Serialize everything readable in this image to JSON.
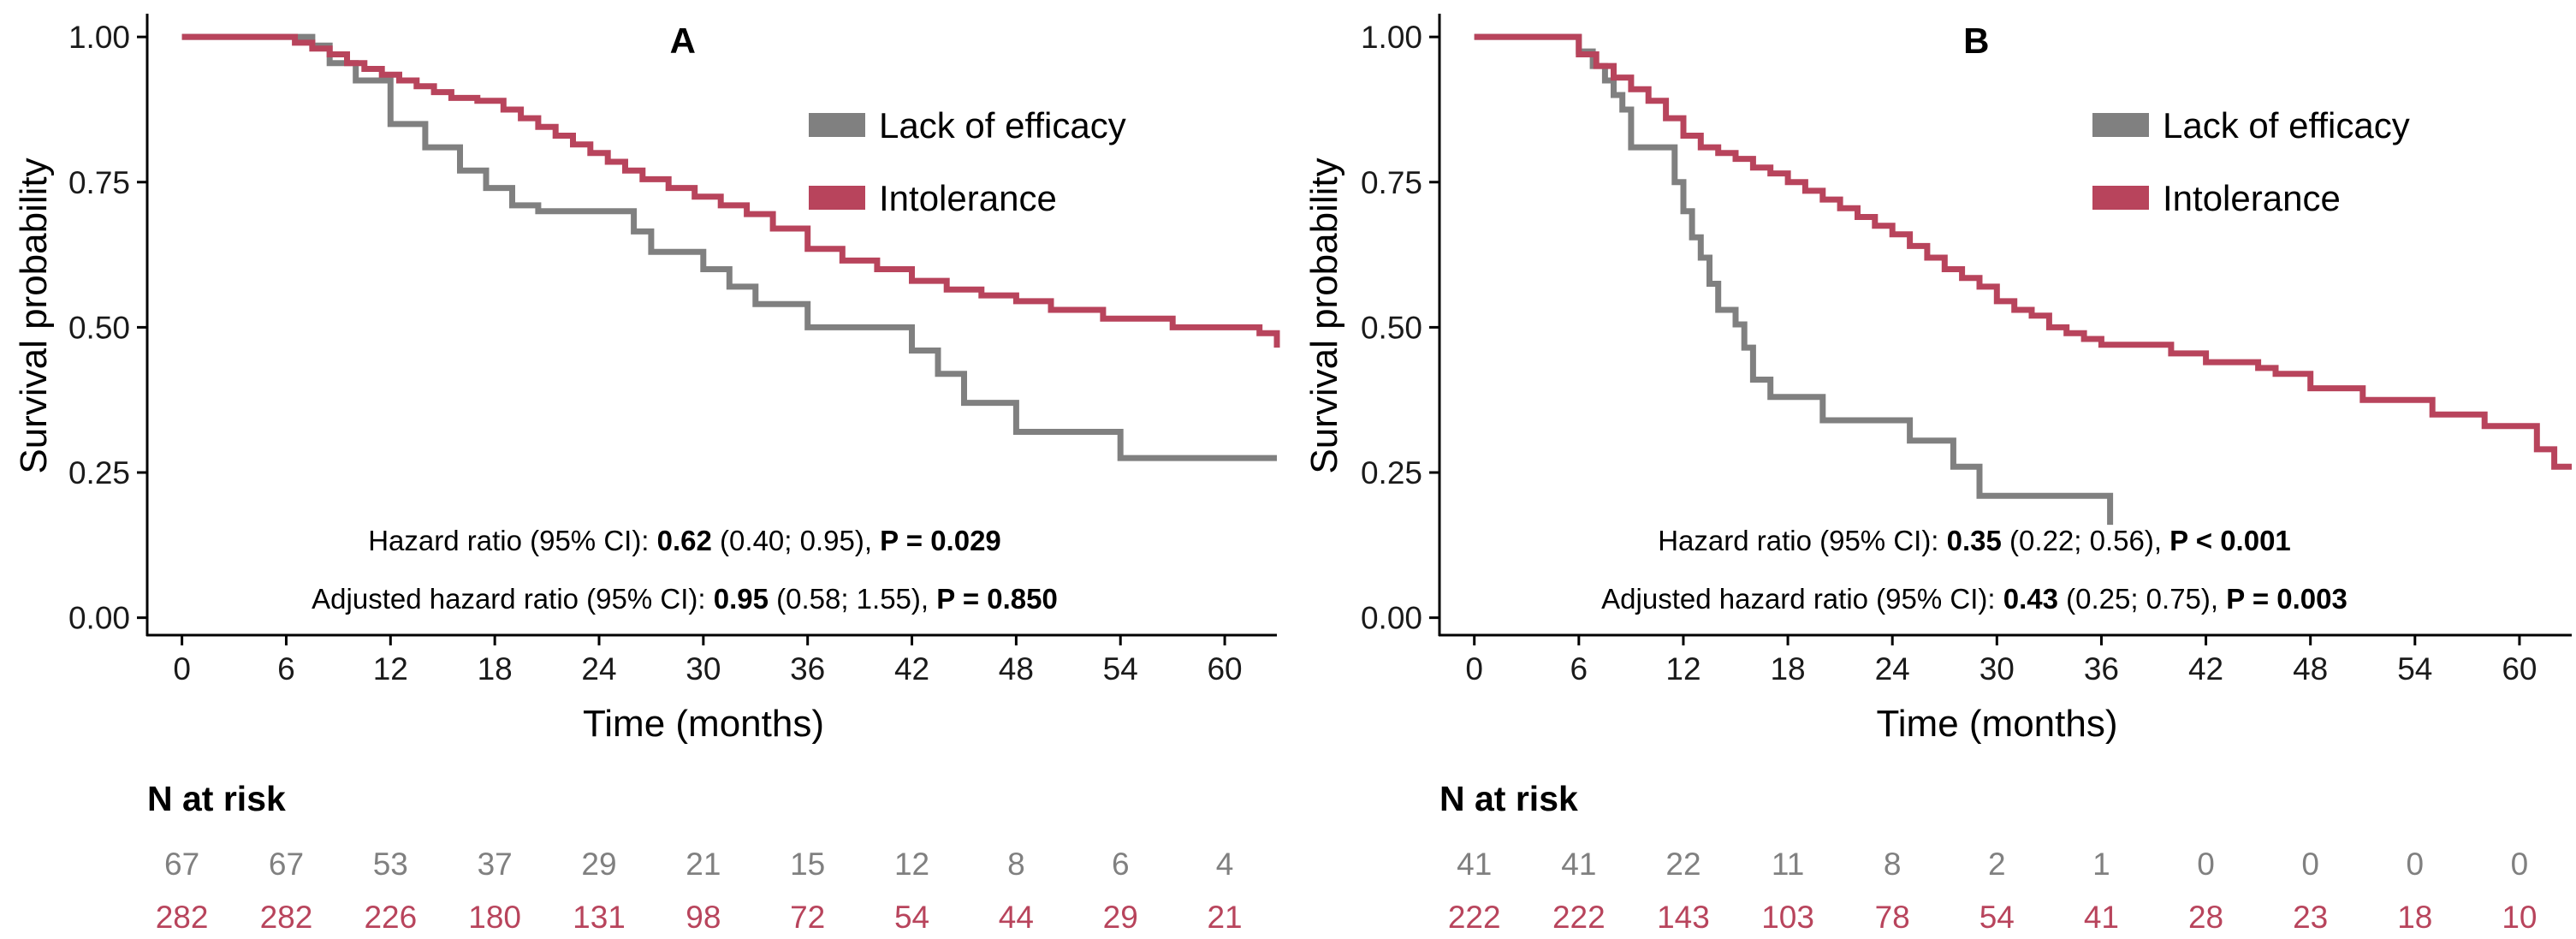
{
  "colors": {
    "lack": "#808080",
    "intol": "#B8445C",
    "axis": "#000000"
  },
  "chart_data": [
    {
      "type": "line",
      "panel": "A",
      "title": "A",
      "xlabel": "Time (months)",
      "ylabel": "Survival probability",
      "xlim": [
        -2,
        63
      ],
      "ylim": [
        -0.03,
        1.04
      ],
      "xticks": [
        0,
        6,
        12,
        18,
        24,
        30,
        36,
        42,
        48,
        54,
        60
      ],
      "yticks": [
        0.0,
        0.25,
        0.5,
        0.75,
        1.0
      ],
      "ytick_labels": [
        "0.00",
        "0.25",
        "0.50",
        "0.75",
        "1.00"
      ],
      "legend": {
        "position": "top-right",
        "entries": [
          "Lack of efficacy",
          "Intolerance"
        ]
      },
      "series": [
        {
          "name": "Lack of efficacy",
          "x": [
            0,
            7.5,
            8.5,
            10,
            12,
            14,
            16,
            17.5,
            19,
            20.5,
            22,
            24,
            26,
            27,
            28.5,
            30,
            31.5,
            33,
            36,
            40,
            42,
            43.5,
            45,
            48,
            51,
            54,
            63
          ],
          "y": [
            1.0,
            0.985,
            0.955,
            0.925,
            0.85,
            0.81,
            0.77,
            0.74,
            0.71,
            0.7,
            0.7,
            0.7,
            0.665,
            0.63,
            0.63,
            0.6,
            0.57,
            0.54,
            0.5,
            0.5,
            0.46,
            0.42,
            0.37,
            0.32,
            0.32,
            0.275,
            0.275
          ]
        },
        {
          "name": "Intolerance",
          "x": [
            0,
            6.5,
            7.5,
            8.5,
            9.5,
            10.5,
            11.5,
            12.5,
            13.5,
            14.5,
            15.5,
            17,
            18.5,
            19.5,
            20.5,
            21.5,
            22.5,
            23.5,
            24.5,
            25.5,
            26.5,
            28,
            29.5,
            31,
            32.5,
            34,
            36,
            38,
            40,
            42,
            44,
            46,
            48,
            50,
            53,
            57,
            62,
            63
          ],
          "y": [
            1.0,
            0.99,
            0.98,
            0.97,
            0.955,
            0.945,
            0.935,
            0.925,
            0.915,
            0.905,
            0.895,
            0.89,
            0.875,
            0.86,
            0.845,
            0.83,
            0.815,
            0.8,
            0.785,
            0.77,
            0.755,
            0.74,
            0.725,
            0.71,
            0.695,
            0.67,
            0.635,
            0.615,
            0.6,
            0.58,
            0.565,
            0.555,
            0.545,
            0.53,
            0.515,
            0.5,
            0.49,
            0.465
          ]
        }
      ],
      "annotations": [
        {
          "prefix": "Hazard ratio (95% CI): ",
          "bold1": "0.62",
          "mid": " (0.40; 0.95), ",
          "bold2": "P = 0.029"
        },
        {
          "prefix": "Adjusted hazard ratio (95% CI): ",
          "bold1": "0.95",
          "mid": " (0.58; 1.55), ",
          "bold2": "P = 0.850"
        }
      ],
      "risk_table": {
        "title": "N at risk",
        "lack": [
          "67",
          "67",
          "53",
          "37",
          "29",
          "21",
          "15",
          "12",
          "8",
          "6",
          "4"
        ],
        "intol": [
          "282",
          "282",
          "226",
          "180",
          "131",
          "98",
          "72",
          "54",
          "44",
          "29",
          "21"
        ]
      }
    },
    {
      "type": "line",
      "panel": "B",
      "title": "B",
      "xlabel": "Time (months)",
      "ylabel": "Survival probability",
      "xlim": [
        -2,
        63
      ],
      "ylim": [
        -0.03,
        1.04
      ],
      "xticks": [
        0,
        6,
        12,
        18,
        24,
        30,
        36,
        42,
        48,
        54,
        60
      ],
      "yticks": [
        0.0,
        0.25,
        0.5,
        0.75,
        1.0
      ],
      "ytick_labels": [
        "0.00",
        "0.25",
        "0.50",
        "0.75",
        "1.00"
      ],
      "legend": {
        "position": "top-right",
        "entries": [
          "Lack of efficacy",
          "Intolerance"
        ]
      },
      "series": [
        {
          "name": "Lack of efficacy",
          "x": [
            0,
            6,
            6.8,
            7.5,
            8,
            8.5,
            9,
            11,
            11.5,
            12,
            12.5,
            13,
            13.5,
            14,
            15,
            15.5,
            16,
            17,
            20,
            22,
            25,
            27.5,
            29,
            36.5
          ],
          "y": [
            1.0,
            0.975,
            0.95,
            0.925,
            0.9,
            0.875,
            0.81,
            0.81,
            0.75,
            0.7,
            0.655,
            0.62,
            0.575,
            0.53,
            0.505,
            0.465,
            0.41,
            0.38,
            0.34,
            0.34,
            0.305,
            0.26,
            0.21,
            0.16
          ]
        },
        {
          "name": "Intolerance",
          "x": [
            0,
            6,
            7,
            8,
            9,
            10,
            11,
            12,
            13,
            14,
            15,
            16,
            17,
            18,
            19,
            20,
            21,
            22,
            23,
            24,
            25,
            26,
            27,
            28,
            29,
            30,
            31,
            32,
            33,
            34,
            35,
            36,
            40,
            42,
            45,
            46,
            48,
            51,
            55,
            58,
            61,
            62,
            63
          ],
          "y": [
            1.0,
            0.97,
            0.95,
            0.93,
            0.91,
            0.89,
            0.86,
            0.83,
            0.81,
            0.8,
            0.79,
            0.775,
            0.765,
            0.75,
            0.735,
            0.72,
            0.705,
            0.69,
            0.675,
            0.66,
            0.64,
            0.62,
            0.6,
            0.585,
            0.57,
            0.545,
            0.53,
            0.52,
            0.5,
            0.49,
            0.48,
            0.47,
            0.455,
            0.44,
            0.43,
            0.42,
            0.395,
            0.375,
            0.35,
            0.33,
            0.29,
            0.26,
            0.26
          ]
        }
      ],
      "annotations": [
        {
          "prefix": "Hazard ratio (95% CI): ",
          "bold1": "0.35",
          "mid": " (0.22; 0.56), ",
          "bold2": "P < 0.001"
        },
        {
          "prefix": "Adjusted hazard ratio (95% CI): ",
          "bold1": "0.43",
          "mid": " (0.25; 0.75), ",
          "bold2": "P = 0.003"
        }
      ],
      "risk_table": {
        "title": "N at risk",
        "lack": [
          "41",
          "41",
          "22",
          "11",
          "8",
          "2",
          "1",
          "0",
          "0",
          "0",
          "0"
        ],
        "intol": [
          "222",
          "222",
          "143",
          "103",
          "78",
          "54",
          "41",
          "28",
          "23",
          "18",
          "10"
        ]
      }
    }
  ]
}
